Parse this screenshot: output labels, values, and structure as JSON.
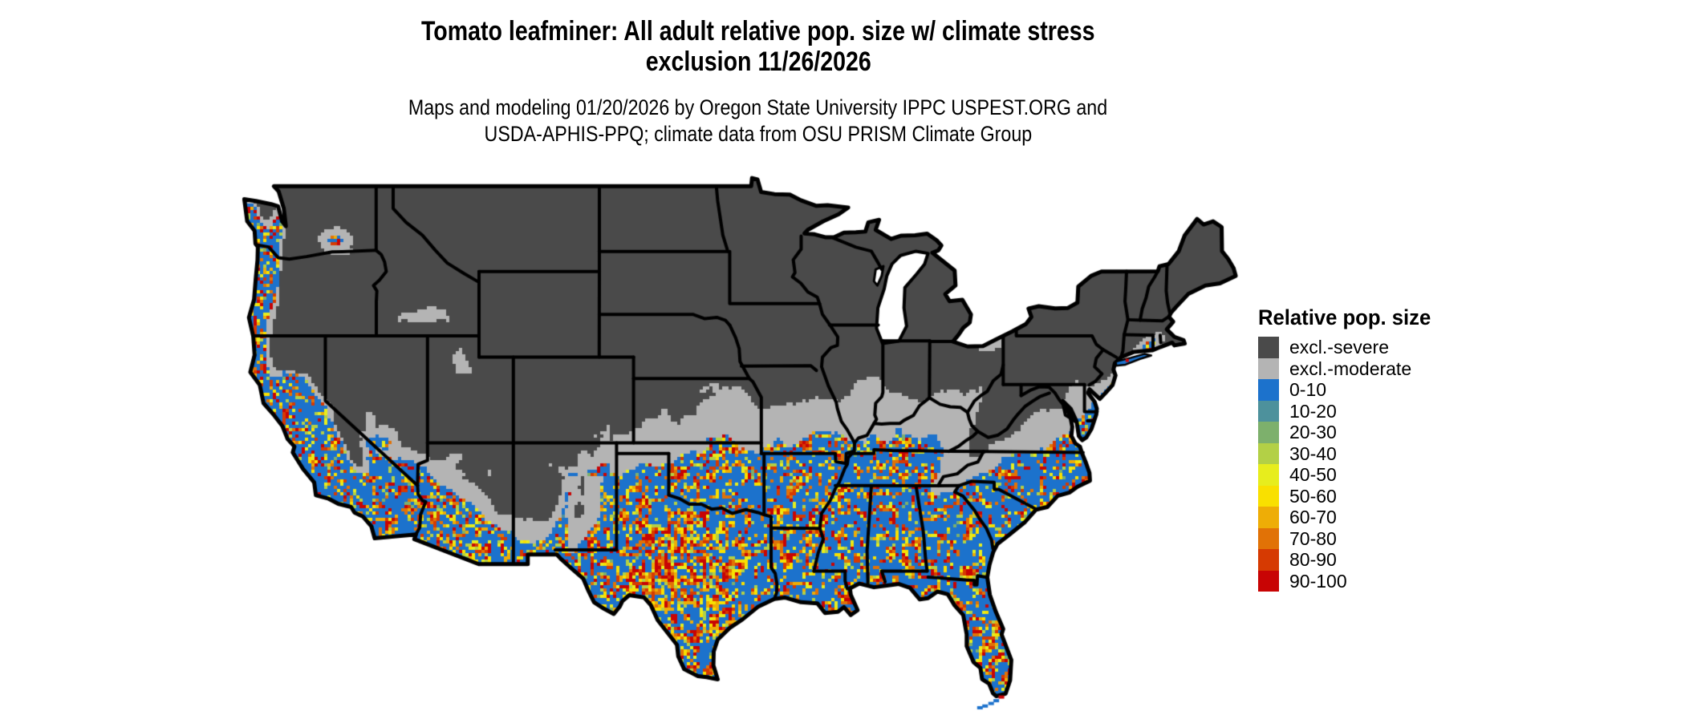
{
  "title": {
    "line1": "Tomato leafminer: All adult relative pop. size w/ climate stress",
    "line2": "exclusion 11/26/2026"
  },
  "subtitle": {
    "line1": "Maps and modeling 01/20/2026 by Oregon State University IPPC USPEST.ORG and",
    "line2": "USDA-APHIS-PPQ; climate data from OSU PRISM Climate Group"
  },
  "legend": {
    "title": "Relative pop. size",
    "items": [
      {
        "key": "excl-severe",
        "label": "excl.-severe",
        "color": "#4a4a4a"
      },
      {
        "key": "excl-moderate",
        "label": "excl.-moderate",
        "color": "#b4b4b4"
      },
      {
        "key": "0-10",
        "label": "0-10",
        "color": "#1c72cc"
      },
      {
        "key": "10-20",
        "label": "10-20",
        "color": "#4d919c"
      },
      {
        "key": "20-30",
        "label": "20-30",
        "color": "#7db06c"
      },
      {
        "key": "30-40",
        "label": "30-40",
        "color": "#b3d046"
      },
      {
        "key": "40-50",
        "label": "40-50",
        "color": "#e7ed1d"
      },
      {
        "key": "50-60",
        "label": "50-60",
        "color": "#f9e000"
      },
      {
        "key": "60-70",
        "label": "60-70",
        "color": "#eead06"
      },
      {
        "key": "70-80",
        "label": "70-80",
        "color": "#e17206"
      },
      {
        "key": "80-90",
        "label": "80-90",
        "color": "#d63a02"
      },
      {
        "key": "90-100",
        "label": "90-100",
        "color": "#c80404"
      }
    ]
  },
  "map": {
    "region": "Contiguous United States",
    "kind": "raster pest risk map",
    "border_color": "#000000",
    "water_color": "#ffffff"
  }
}
